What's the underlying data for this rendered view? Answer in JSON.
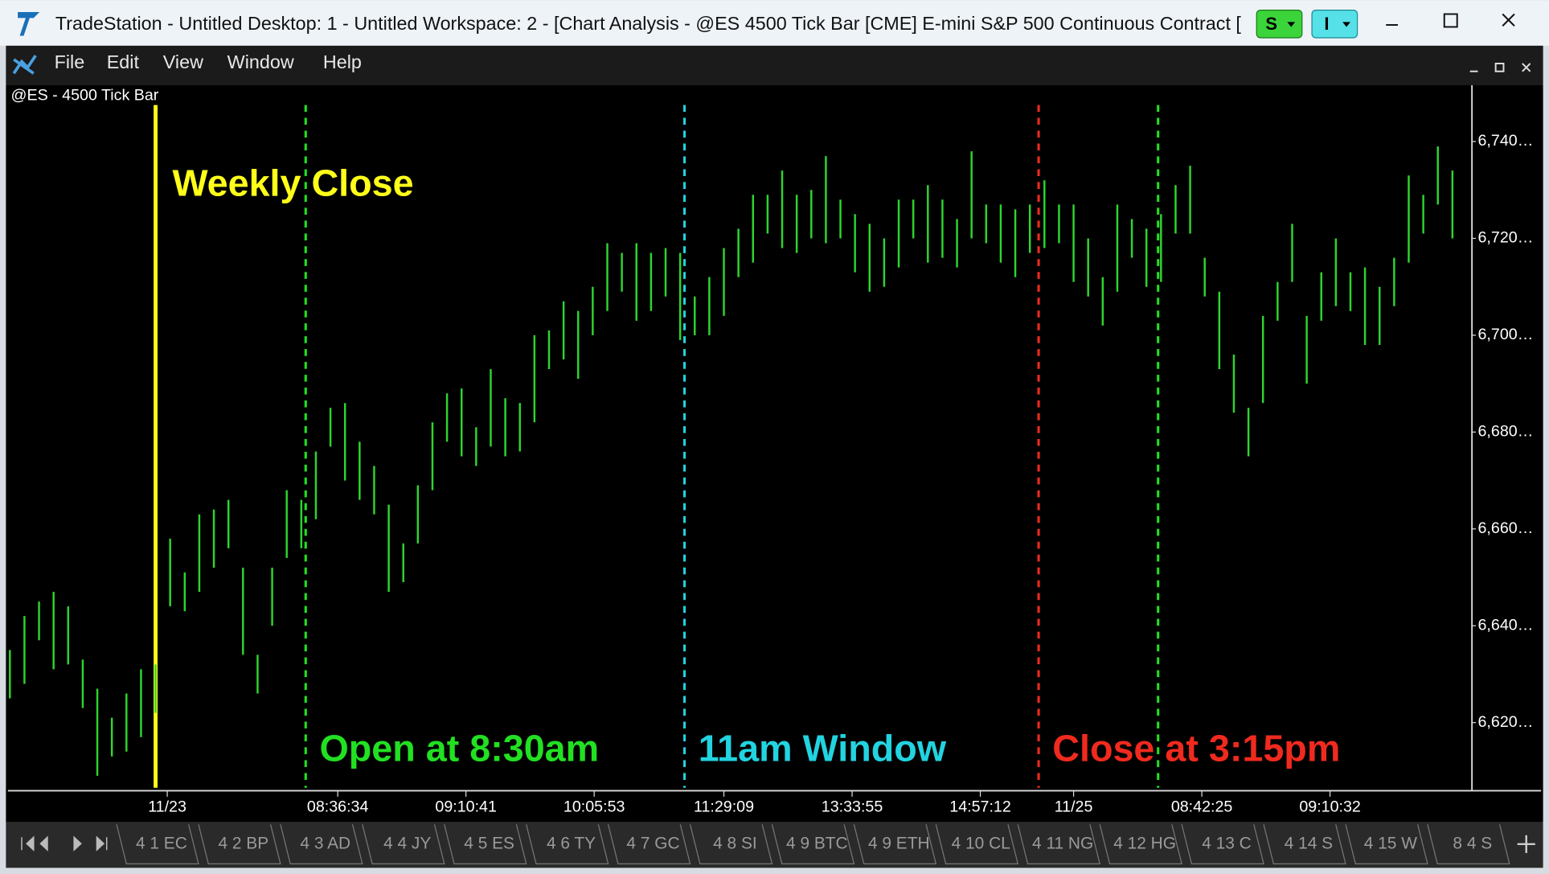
{
  "window": {
    "title": "TradeStation  - Untitled Desktop: 1 - Untitled Workspace:  2 - [Chart Analysis - @ES 4500 Tick Bar [CME] E-mini S&P 500 Continuous Contract [",
    "buttons": [
      "S",
      "I"
    ]
  },
  "menu": [
    "File",
    "Edit",
    "View",
    "Window",
    "Help"
  ],
  "tabs": [
    "4 1 EC",
    "4 2 BP",
    "4 3 AD",
    "4 4 JY",
    "4 5 ES",
    "4 6 TY",
    "4 7 GC",
    "4 8 SI",
    "4 9 BTC",
    "4 9 ETH",
    "4 10 CL",
    "4 11 NG",
    "4 12 HG",
    "4 13 C",
    "4 14 S",
    "4 15 W",
    "8 4 S"
  ],
  "chart_data": {
    "type": "range",
    "title": "@ES - 4500 Tick Bar",
    "color": "#2ed52e",
    "high": [
      6635,
      6642,
      6645,
      6647,
      6644,
      6633,
      6627,
      6621,
      6626,
      6631,
      6632,
      6658,
      6651,
      6663,
      6664,
      6666,
      6652,
      6634,
      6652,
      6668,
      6666,
      6676,
      6685,
      6686,
      6678,
      6673,
      6665,
      6657,
      6669,
      6682,
      6688,
      6689,
      6681,
      6693,
      6687,
      6686,
      6700,
      6701,
      6707,
      6705,
      6710,
      6719,
      6717,
      6719,
      6717,
      6718,
      6717,
      6708,
      6712,
      6718,
      6722,
      6729,
      6729,
      6734,
      6729,
      6730,
      6737,
      6728,
      6725,
      6723,
      6720,
      6728,
      6728,
      6731,
      6728,
      6724,
      6738,
      6727,
      6727,
      6726,
      6727,
      6732,
      6727,
      6727,
      6720,
      6712,
      6727,
      6724,
      6722,
      6725,
      6731,
      6735,
      6716,
      6709,
      6696,
      6685,
      6704,
      6711,
      6723,
      6704,
      6713,
      6720,
      6713,
      6714,
      6710,
      6716,
      6733,
      6729,
      6739,
      6734
    ],
    "low": [
      6625,
      6628,
      6637,
      6631,
      6632,
      6623,
      6609,
      6613,
      6614,
      6617,
      6622,
      6644,
      6643,
      6647,
      6652,
      6656,
      6634,
      6626,
      6640,
      6654,
      6656,
      6662,
      6677,
      6670,
      6666,
      6663,
      6647,
      6649,
      6657,
      6668,
      6678,
      6675,
      6673,
      6677,
      6675,
      6676,
      6682,
      6693,
      6695,
      6691,
      6700,
      6705,
      6709,
      6703,
      6705,
      6708,
      6699,
      6700,
      6700,
      6704,
      6712,
      6715,
      6721,
      6718,
      6717,
      6720,
      6719,
      6720,
      6713,
      6709,
      6710,
      6714,
      6720,
      6715,
      6716,
      6714,
      6720,
      6719,
      6715,
      6712,
      6717,
      6718,
      6719,
      6711,
      6708,
      6702,
      6709,
      6716,
      6710,
      6711,
      6721,
      6721,
      6708,
      6693,
      6684,
      6675,
      6686,
      6703,
      6711,
      6690,
      6703,
      6706,
      6705,
      6698,
      6698,
      6706,
      6715,
      6721,
      6727,
      6720
    ],
    "xlim": [
      0,
      100
    ],
    "xticks": [
      {
        "value": 10.8,
        "label": "11/23"
      },
      {
        "value": 22.5,
        "label": "08:36:34"
      },
      {
        "value": 31.3,
        "label": "09:10:41"
      },
      {
        "value": 40.1,
        "label": "10:05:53"
      },
      {
        "value": 49,
        "label": "11:29:09"
      },
      {
        "value": 57.8,
        "label": "13:33:55"
      },
      {
        "value": 66.6,
        "label": "14:57:12"
      },
      {
        "value": 73,
        "label": "11/25"
      },
      {
        "value": 81.8,
        "label": "08:42:25"
      },
      {
        "value": 90.6,
        "label": "09:10:32"
      }
    ],
    "ylim": [
      6606,
      6752
    ],
    "yticks": [
      {
        "value": 6620,
        "label": "6,620…"
      },
      {
        "value": 6640,
        "label": "6,640…"
      },
      {
        "value": 6660,
        "label": "6,660…"
      },
      {
        "value": 6680,
        "label": "6,680…"
      },
      {
        "value": 6700,
        "label": "6,700…"
      },
      {
        "value": 6720,
        "label": "6,720…"
      },
      {
        "value": 6740,
        "label": "6,740…"
      }
    ],
    "markers": [
      {
        "x": 10,
        "label": "Weekly Close",
        "color": "#ffff1a",
        "dashed": false
      },
      {
        "x": 20.3,
        "label": "Open at 8:30am",
        "color": "#22e022",
        "dashed": true
      },
      {
        "x": 46.3,
        "label": "11am Window",
        "color": "#22d3e0",
        "dashed": true
      },
      {
        "x": 70.6,
        "label": "Close at 3:15pm",
        "color": "#f02a1e",
        "dashed": true
      },
      {
        "x": 78.8,
        "color": "#22e022",
        "dashed": true
      }
    ]
  }
}
